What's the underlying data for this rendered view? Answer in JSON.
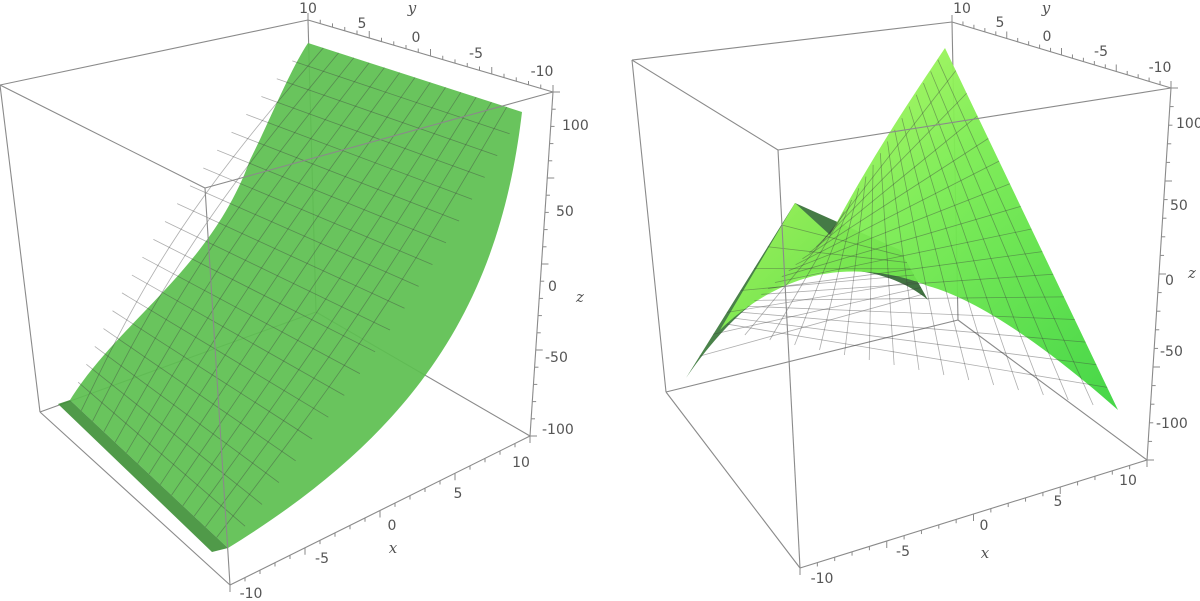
{
  "panels": [
    {
      "surface": "cubic",
      "x_axis": {
        "letter": "x",
        "ticks": [
          "-10",
          "-5",
          "0",
          "5",
          "10"
        ]
      },
      "y_axis": {
        "letter": "y",
        "ticks": [
          "10",
          "5",
          "0",
          "-5",
          "-10"
        ]
      },
      "z_axis": {
        "letter": "z",
        "ticks": [
          "100",
          "50",
          "0",
          "-50",
          "-100"
        ]
      },
      "colors": {
        "fill": "#5cbf4f",
        "dark": "#3d8f35"
      }
    },
    {
      "surface": "saddle",
      "x_axis": {
        "letter": "x",
        "ticks": [
          "-10",
          "-5",
          "0",
          "5",
          "10"
        ]
      },
      "y_axis": {
        "letter": "y",
        "ticks": [
          "10",
          "5",
          "0",
          "-5",
          "-10"
        ]
      },
      "z_axis": {
        "letter": "z",
        "ticks": [
          "100",
          "50",
          "0",
          "-50",
          "-100"
        ]
      },
      "colors": {
        "light": "#b6ff5a",
        "mid": "#5fe25a",
        "dark": "#2f7a2f"
      }
    }
  ]
}
